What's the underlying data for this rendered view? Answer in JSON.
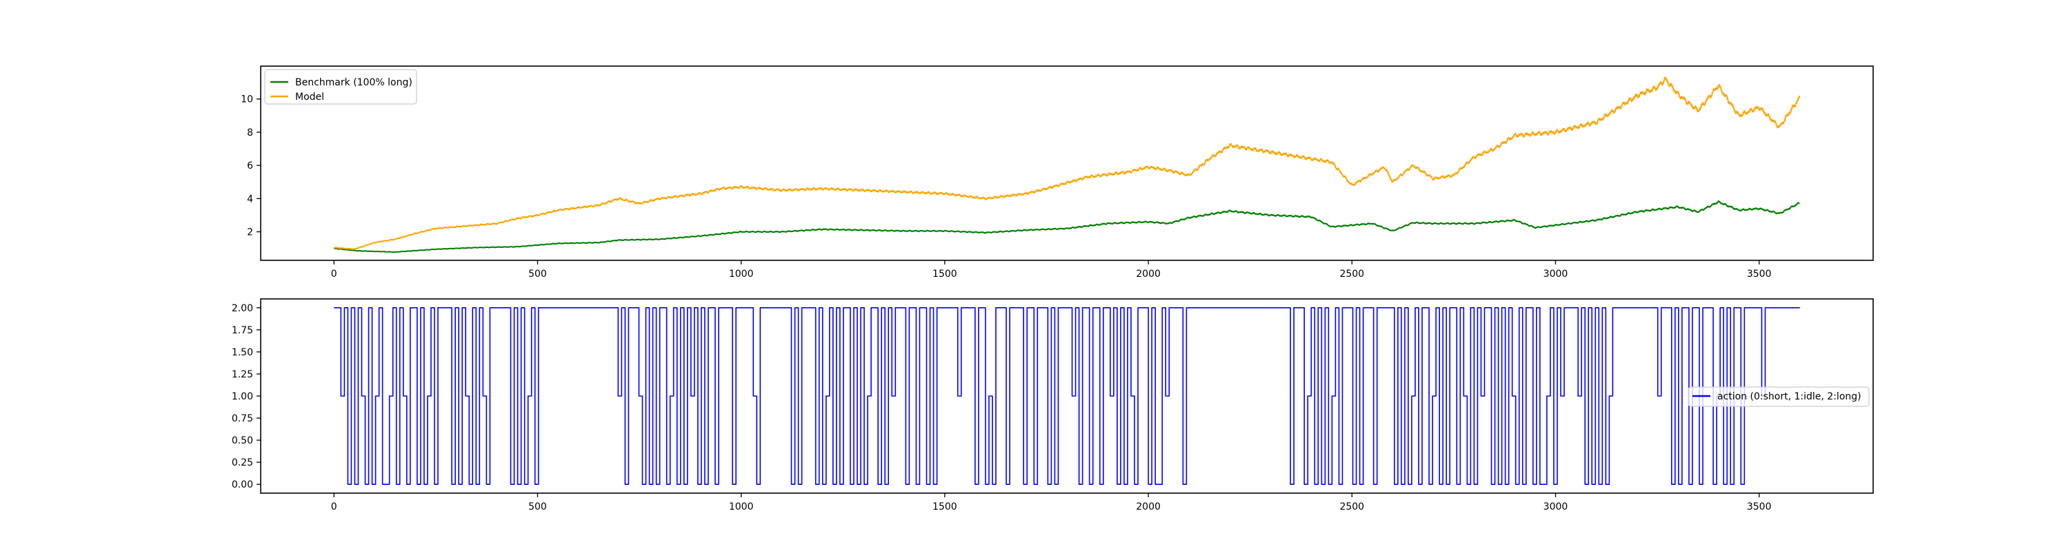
{
  "chart_data": [
    {
      "type": "line",
      "title": "",
      "xlabel": "",
      "ylabel": "",
      "xlim": [
        -180,
        3780
      ],
      "ylim": [
        0.28,
        11.98
      ],
      "xticks": [
        0,
        500,
        1000,
        1500,
        2000,
        2500,
        3000,
        3500
      ],
      "xtick_labels": [
        "0",
        "500",
        "1000",
        "1500",
        "2000",
        "2500",
        "3000",
        "3500"
      ],
      "yticks": [
        2,
        4,
        6,
        8,
        10
      ],
      "ytick_labels": [
        "2",
        "4",
        "6",
        "8",
        "10"
      ],
      "grid": false,
      "legend": "upper left",
      "x_count": 3600,
      "series": [
        {
          "name": "Benchmark (100% long)",
          "color": "#008000",
          "points": [
            [
              0,
              1.0
            ],
            [
              60,
              0.85
            ],
            [
              150,
              0.78
            ],
            [
              250,
              0.95
            ],
            [
              350,
              1.05
            ],
            [
              450,
              1.1
            ],
            [
              550,
              1.3
            ],
            [
              650,
              1.35
            ],
            [
              700,
              1.5
            ],
            [
              800,
              1.55
            ],
            [
              900,
              1.75
            ],
            [
              1000,
              2.0
            ],
            [
              1100,
              2.0
            ],
            [
              1200,
              2.15
            ],
            [
              1300,
              2.1
            ],
            [
              1400,
              2.05
            ],
            [
              1500,
              2.05
            ],
            [
              1600,
              1.95
            ],
            [
              1700,
              2.1
            ],
            [
              1800,
              2.2
            ],
            [
              1900,
              2.5
            ],
            [
              2000,
              2.6
            ],
            [
              2050,
              2.5
            ],
            [
              2100,
              2.85
            ],
            [
              2200,
              3.25
            ],
            [
              2300,
              3.0
            ],
            [
              2400,
              2.9
            ],
            [
              2450,
              2.3
            ],
            [
              2500,
              2.4
            ],
            [
              2550,
              2.5
            ],
            [
              2600,
              2.05
            ],
            [
              2650,
              2.55
            ],
            [
              2700,
              2.5
            ],
            [
              2800,
              2.5
            ],
            [
              2900,
              2.7
            ],
            [
              2950,
              2.25
            ],
            [
              3000,
              2.4
            ],
            [
              3100,
              2.7
            ],
            [
              3200,
              3.2
            ],
            [
              3300,
              3.5
            ],
            [
              3350,
              3.2
            ],
            [
              3400,
              3.8
            ],
            [
              3450,
              3.3
            ],
            [
              3500,
              3.4
            ],
            [
              3550,
              3.1
            ],
            [
              3600,
              3.75
            ]
          ]
        },
        {
          "name": "Model",
          "color": "#ffa500",
          "points": [
            [
              0,
              1.05
            ],
            [
              50,
              0.95
            ],
            [
              100,
              1.35
            ],
            [
              150,
              1.55
            ],
            [
              200,
              1.9
            ],
            [
              250,
              2.2
            ],
            [
              300,
              2.3
            ],
            [
              350,
              2.4
            ],
            [
              400,
              2.5
            ],
            [
              450,
              2.8
            ],
            [
              500,
              3.0
            ],
            [
              550,
              3.3
            ],
            [
              650,
              3.6
            ],
            [
              700,
              4.0
            ],
            [
              750,
              3.7
            ],
            [
              800,
              4.0
            ],
            [
              900,
              4.3
            ],
            [
              950,
              4.6
            ],
            [
              1000,
              4.7
            ],
            [
              1100,
              4.5
            ],
            [
              1200,
              4.6
            ],
            [
              1300,
              4.5
            ],
            [
              1400,
              4.4
            ],
            [
              1500,
              4.3
            ],
            [
              1600,
              4.0
            ],
            [
              1700,
              4.3
            ],
            [
              1750,
              4.6
            ],
            [
              1850,
              5.3
            ],
            [
              1950,
              5.6
            ],
            [
              2000,
              5.9
            ],
            [
              2050,
              5.7
            ],
            [
              2100,
              5.4
            ],
            [
              2150,
              6.4
            ],
            [
              2200,
              7.2
            ],
            [
              2300,
              6.8
            ],
            [
              2400,
              6.4
            ],
            [
              2450,
              6.2
            ],
            [
              2500,
              4.8
            ],
            [
              2550,
              5.5
            ],
            [
              2580,
              5.9
            ],
            [
              2600,
              5.0
            ],
            [
              2650,
              6.0
            ],
            [
              2700,
              5.2
            ],
            [
              2750,
              5.4
            ],
            [
              2800,
              6.5
            ],
            [
              2850,
              7.0
            ],
            [
              2900,
              7.8
            ],
            [
              3000,
              8.0
            ],
            [
              3100,
              8.6
            ],
            [
              3200,
              10.2
            ],
            [
              3250,
              10.7
            ],
            [
              3270,
              11.2
            ],
            [
              3300,
              10.3
            ],
            [
              3350,
              9.3
            ],
            [
              3400,
              10.8
            ],
            [
              3450,
              9.0
            ],
            [
              3500,
              9.5
            ],
            [
              3550,
              8.3
            ],
            [
              3600,
              10.1
            ]
          ]
        }
      ]
    },
    {
      "type": "line",
      "title": "",
      "xlabel": "",
      "ylabel": "",
      "xlim": [
        -180,
        3780
      ],
      "ylim": [
        -0.1,
        2.1
      ],
      "xticks": [
        0,
        500,
        1000,
        1500,
        2000,
        2500,
        3000,
        3500
      ],
      "xtick_labels": [
        "0",
        "500",
        "1000",
        "1500",
        "2000",
        "2500",
        "3000",
        "3500"
      ],
      "yticks": [
        0.0,
        0.25,
        0.5,
        0.75,
        1.0,
        1.25,
        1.5,
        1.75,
        2.0
      ],
      "ytick_labels": [
        "0.00",
        "0.25",
        "0.50",
        "0.75",
        "1.00",
        "1.25",
        "1.50",
        "1.75",
        "2.00"
      ],
      "grid": false,
      "legend": "center right",
      "x_count": 3600,
      "series": [
        {
          "name": "action (0:short, 1:idle, 2:long)",
          "color": "#0000ff",
          "values": [
            2,
            2,
            1,
            2,
            0,
            2,
            0,
            2,
            1,
            0,
            2,
            0,
            1,
            2,
            0,
            0,
            1,
            2,
            0,
            2,
            1,
            0,
            2,
            2,
            0,
            2,
            0,
            1,
            2,
            0,
            2,
            2,
            2,
            2,
            0,
            2,
            0,
            2,
            1,
            0,
            2,
            0,
            2,
            1,
            0,
            2,
            2,
            2,
            2,
            2,
            2,
            0,
            2,
            0,
            2,
            0,
            1,
            2,
            0,
            2,
            2,
            2,
            2,
            2,
            2,
            2,
            2,
            2,
            2,
            2,
            2,
            2,
            2,
            2,
            2,
            2,
            2,
            2,
            2,
            2,
            2,
            2,
            1,
            2,
            0,
            2,
            2,
            2,
            1,
            0,
            2,
            0,
            2,
            0,
            2,
            2,
            0,
            1,
            2,
            0,
            2,
            0,
            2,
            1,
            2,
            0,
            2,
            0,
            2,
            2,
            0,
            2,
            2,
            2,
            2,
            0,
            2,
            2,
            2,
            2,
            2,
            1,
            0,
            2,
            2,
            2,
            2,
            2,
            2,
            2,
            2,
            2,
            0,
            2,
            0,
            2,
            2,
            2,
            2,
            0,
            2,
            0,
            1,
            2,
            0,
            2,
            0,
            2,
            2,
            0,
            2,
            0,
            2,
            0,
            1,
            2,
            2,
            0,
            2,
            0,
            2,
            1,
            2,
            2,
            2,
            0,
            2,
            2,
            0,
            2,
            2,
            0,
            2,
            0,
            2,
            2,
            2,
            2,
            2,
            2,
            1,
            2,
            2,
            2,
            2,
            0,
            2,
            2,
            0,
            1,
            0,
            2,
            2,
            2,
            0,
            2,
            2,
            2,
            2,
            0,
            2,
            2,
            0,
            2,
            2,
            2,
            0,
            2,
            0,
            2,
            2,
            2,
            2,
            1,
            2,
            0,
            2,
            2,
            0,
            2,
            2,
            0,
            2,
            2,
            1,
            2,
            0,
            2,
            0,
            2,
            1,
            0,
            2,
            2,
            2,
            0,
            2,
            0,
            0,
            2,
            1,
            2,
            2,
            2,
            2,
            0,
            2,
            2,
            2,
            2,
            2,
            2,
            2,
            2,
            2,
            2,
            2,
            2,
            2,
            2,
            2,
            2,
            2,
            2,
            2,
            2,
            2,
            2,
            2,
            2,
            2,
            2,
            2,
            2,
            2,
            2,
            0,
            2,
            2,
            2,
            0,
            1,
            2,
            0,
            2,
            0,
            2,
            0,
            1,
            2,
            0,
            2,
            2,
            2,
            0,
            2,
            0,
            2,
            2,
            2,
            0,
            2,
            2,
            2,
            2,
            2,
            0,
            2,
            0,
            2,
            0,
            1,
            2,
            0,
            2,
            2,
            0,
            1,
            2,
            0,
            2,
            0,
            2,
            2,
            0,
            2,
            1,
            0,
            2,
            0,
            2,
            1,
            2,
            2,
            0,
            2,
            0,
            2,
            0,
            2,
            1,
            0,
            2,
            0,
            2,
            2,
            0,
            2,
            0,
            0,
            1,
            2,
            0,
            2,
            1,
            2,
            2,
            2,
            2,
            1,
            2,
            0,
            2,
            0,
            2,
            0,
            2,
            0,
            1,
            2,
            2,
            2,
            2,
            2,
            2,
            2,
            2,
            2,
            2,
            2,
            2,
            2,
            1,
            2,
            2,
            2,
            0,
            2,
            0,
            2,
            2,
            0,
            2,
            2,
            0,
            2,
            2,
            2,
            0,
            1,
            2,
            0,
            2,
            0,
            2,
            2,
            0,
            2,
            2,
            2,
            2,
            2,
            1,
            2,
            2,
            2,
            2,
            2,
            2,
            2,
            2,
            2,
            2
          ]
        }
      ]
    }
  ]
}
